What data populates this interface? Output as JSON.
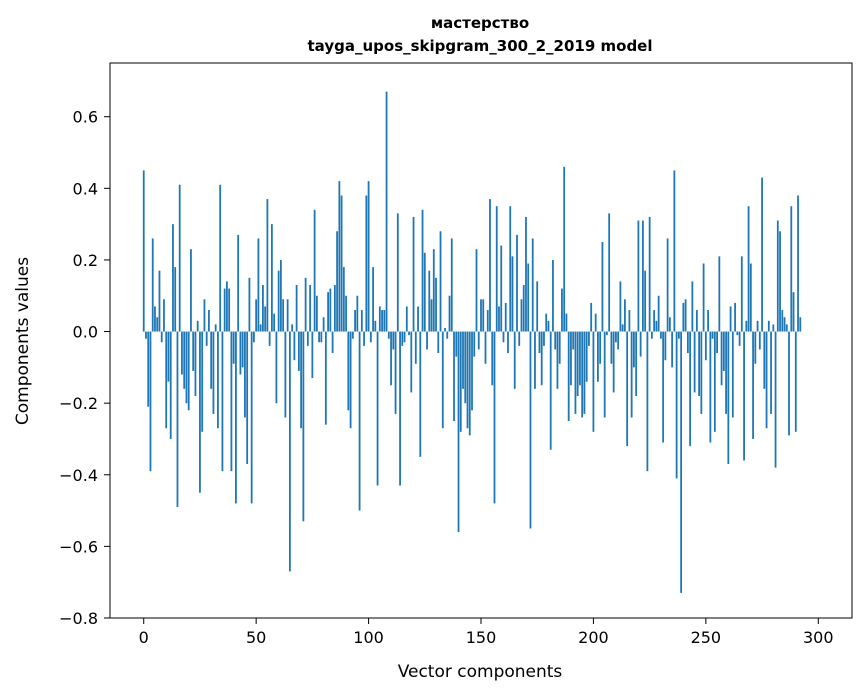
{
  "chart_data": {
    "type": "bar",
    "title_line1": "мастерство",
    "title_line2": "tayga_upos_skipgram_300_2_2019 model",
    "xlabel": "Vector components",
    "ylabel": "Components values",
    "xlim": [
      -15,
      315
    ],
    "ylim": [
      -0.8,
      0.75
    ],
    "xticks": [
      0,
      50,
      100,
      150,
      200,
      250,
      300
    ],
    "xtick_labels": [
      "0",
      "50",
      "100",
      "150",
      "200",
      "250",
      "300"
    ],
    "yticks": [
      -0.8,
      -0.6,
      -0.4,
      -0.2,
      0.0,
      0.2,
      0.4,
      0.6
    ],
    "ytick_labels": [
      "−0.8",
      "−0.6",
      "−0.4",
      "−0.2",
      "0.0",
      "0.2",
      "0.4",
      "0.6"
    ],
    "bar_color": "#1f77b4",
    "grid": false,
    "values": [
      0.45,
      -0.02,
      -0.21,
      -0.39,
      0.26,
      0.07,
      0.04,
      0.17,
      -0.03,
      0.09,
      -0.27,
      -0.14,
      -0.3,
      0.3,
      0.18,
      -0.49,
      0.41,
      -0.12,
      -0.16,
      -0.2,
      -0.22,
      0.23,
      -0.11,
      -0.18,
      0.03,
      -0.45,
      -0.28,
      0.09,
      -0.04,
      0.06,
      -0.16,
      -0.23,
      0.02,
      -0.27,
      0.41,
      -0.39,
      0.12,
      0.14,
      0.12,
      -0.39,
      -0.09,
      -0.48,
      0.27,
      -0.12,
      -0.1,
      -0.24,
      -0.37,
      0.15,
      -0.48,
      -0.03,
      0.09,
      0.26,
      0.02,
      0.13,
      0.07,
      0.37,
      -0.04,
      0.3,
      0.05,
      -0.2,
      0.17,
      0.2,
      0.09,
      -0.24,
      0.09,
      -0.67,
      0.02,
      -0.08,
      0.13,
      -0.11,
      -0.27,
      -0.53,
      0.15,
      -0.04,
      0.13,
      -0.13,
      0.34,
      0.1,
      -0.03,
      -0.03,
      0.04,
      -0.26,
      0.11,
      0.12,
      -0.06,
      0.13,
      0.28,
      0.42,
      0.38,
      0.18,
      0.1,
      -0.22,
      -0.27,
      -0.02,
      0.06,
      0.1,
      -0.5,
      0.06,
      -0.04,
      0.38,
      0.42,
      -0.03,
      0.18,
      0.03,
      -0.43,
      0.07,
      0.06,
      0.06,
      0.67,
      -0.02,
      -0.15,
      -0.05,
      -0.23,
      0.33,
      -0.43,
      -0.04,
      -0.03,
      0.07,
      -0.01,
      -0.17,
      0.32,
      -0.09,
      0.07,
      -0.35,
      0.34,
      0.22,
      -0.05,
      0.17,
      0.09,
      0.23,
      0.15,
      -0.06,
      0.28,
      -0.27,
      0.01,
      -0.02,
      0.1,
      0.26,
      -0.25,
      -0.07,
      -0.56,
      -0.28,
      -0.16,
      -0.2,
      -0.27,
      -0.29,
      -0.22,
      -0.07,
      0.23,
      -0.05,
      0.09,
      0.09,
      -0.09,
      0.06,
      0.37,
      -0.15,
      -0.48,
      0.35,
      0.07,
      0.24,
      -0.03,
      0.08,
      -0.06,
      0.35,
      0.21,
      -0.16,
      0.27,
      -0.04,
      0.09,
      0.13,
      0.32,
      0.19,
      -0.55,
      0.26,
      -0.16,
      0.14,
      -0.06,
      -0.15,
      -0.04,
      0.05,
      0.03,
      -0.33,
      0.2,
      -0.05,
      -0.16,
      -0.09,
      0.12,
      0.46,
      0.05,
      -0.25,
      -0.15,
      -0.05,
      -0.23,
      -0.18,
      -0.15,
      -0.24,
      -0.23,
      -0.14,
      -0.04,
      0.08,
      -0.28,
      0.05,
      -0.14,
      -0.09,
      0.25,
      -0.24,
      -0.01,
      0.33,
      -0.09,
      -0.17,
      -0.03,
      -0.05,
      0.14,
      0.02,
      0.09,
      -0.32,
      0.06,
      -0.24,
      -0.1,
      -0.18,
      0.31,
      -0.07,
      0.31,
      0.17,
      -0.39,
      0.32,
      -0.02,
      0.06,
      0.03,
      0.1,
      -0.02,
      -0.31,
      -0.08,
      0.26,
      0.04,
      -0.1,
      0.45,
      -0.41,
      -0.02,
      -0.73,
      0.08,
      0.09,
      -0.06,
      -0.32,
      0.14,
      -0.17,
      0.06,
      -0.18,
      -0.23,
      0.19,
      -0.08,
      0.06,
      -0.31,
      -0.02,
      -0.28,
      -0.06,
      0.21,
      -0.15,
      -0.11,
      -0.23,
      -0.37,
      0.07,
      -0.24,
      0.08,
      -0.01,
      -0.04,
      0.21,
      -0.36,
      0.03,
      0.35,
      0.19,
      -0.3,
      -0.09,
      0.03,
      -0.05,
      0.43,
      -0.16,
      -0.27,
      0.03,
      -0.23,
      0.02,
      -0.38,
      0.31,
      0.28,
      0.06,
      0.04,
      0.02,
      -0.29,
      0.35,
      0.11,
      -0.28,
      0.38,
      0.04
    ]
  }
}
